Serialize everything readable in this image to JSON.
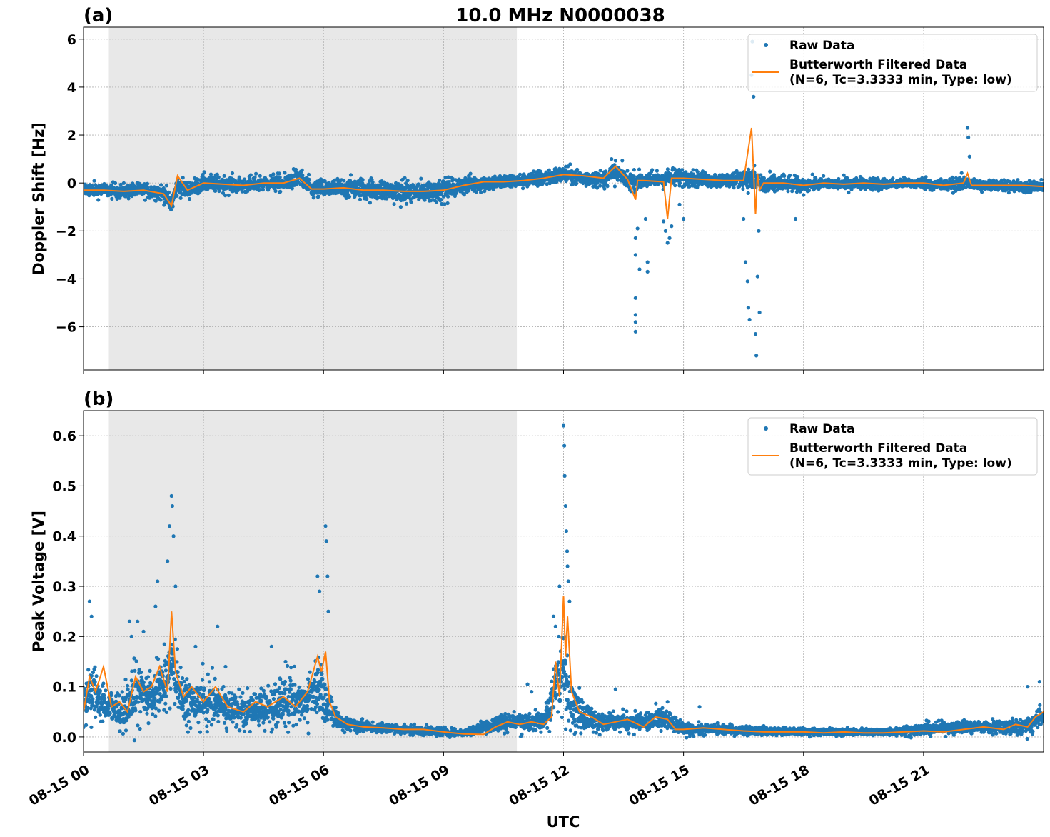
{
  "figure": {
    "title": "10.0 MHz N0000038",
    "xlabel": "UTC"
  },
  "chart_data": [
    {
      "type": "scatter",
      "panel_label": "(a)",
      "ylabel": "Doppler Shift [Hz]",
      "ylim": [
        -7.8,
        6.5
      ],
      "yticks": [
        6,
        4,
        2,
        0,
        -2,
        -4,
        -6
      ],
      "ytick_labels": [
        "6",
        "4",
        "2",
        "0",
        "−2",
        "−4",
        "−6"
      ],
      "xlim_hours": [
        0,
        24
      ],
      "grid": true,
      "shaded_interval_hours": [
        0.633,
        10.833
      ],
      "shade_color": "#e8e8e8",
      "legend_position": "top-right",
      "series": [
        {
          "name": "Raw Data",
          "kind": "points",
          "color": "#1f77b4",
          "band": {
            "x": [
              0,
              0.5,
              1.0,
              1.5,
              2.0,
              2.2,
              2.35,
              2.6,
              3.0,
              3.5,
              4.0,
              4.5,
              5.0,
              5.4,
              5.7,
              6.0,
              6.5,
              7.0,
              7.5,
              8.0,
              8.5,
              9.0,
              9.5,
              10.0,
              10.5,
              11.0,
              11.5,
              12.0,
              12.5,
              13.0,
              13.3,
              13.6,
              14.0,
              14.5,
              15.0,
              15.5,
              16.0,
              16.5,
              16.8,
              17.0,
              17.5,
              18.0,
              18.5,
              19.0,
              19.5,
              20.0,
              20.5,
              21.0,
              21.5,
              22.0,
              22.5,
              23.0,
              23.5,
              24.0
            ],
            "center": [
              -0.25,
              -0.3,
              -0.35,
              -0.3,
              -0.4,
              -0.9,
              -0.1,
              -0.3,
              0.0,
              -0.05,
              -0.1,
              0.0,
              0.0,
              0.25,
              -0.3,
              -0.25,
              -0.2,
              -0.25,
              -0.3,
              -0.4,
              -0.35,
              -0.3,
              -0.1,
              0.0,
              0.05,
              0.1,
              0.2,
              0.35,
              0.2,
              0.15,
              0.5,
              0.1,
              0.1,
              0.2,
              0.25,
              0.15,
              0.1,
              0.2,
              0.1,
              -0.1,
              0.0,
              -0.1,
              0.0,
              -0.05,
              0.0,
              -0.05,
              0.0,
              0.0,
              -0.1,
              0.0,
              -0.1,
              -0.1,
              -0.15,
              -0.15
            ],
            "spread": [
              0.3,
              0.3,
              0.3,
              0.3,
              0.35,
              0.4,
              0.4,
              0.35,
              0.35,
              0.35,
              0.35,
              0.35,
              0.35,
              0.4,
              0.4,
              0.4,
              0.4,
              0.45,
              0.45,
              0.5,
              0.45,
              0.45,
              0.4,
              0.35,
              0.3,
              0.3,
              0.35,
              0.35,
              0.35,
              0.35,
              0.45,
              0.4,
              0.35,
              0.4,
              0.35,
              0.3,
              0.3,
              0.35,
              0.6,
              0.45,
              0.35,
              0.3,
              0.25,
              0.25,
              0.25,
              0.25,
              0.2,
              0.25,
              0.25,
              0.3,
              0.25,
              0.25,
              0.25,
              0.25
            ]
          },
          "outliers": [
            [
              13.8,
              -2.3
            ],
            [
              13.8,
              -3.0
            ],
            [
              13.8,
              -4.8
            ],
            [
              13.8,
              -5.5
            ],
            [
              13.8,
              -5.8
            ],
            [
              13.8,
              -6.2
            ],
            [
              13.85,
              -1.9
            ],
            [
              13.9,
              -3.6
            ],
            [
              14.05,
              -1.5
            ],
            [
              14.1,
              -3.3
            ],
            [
              14.1,
              -3.7
            ],
            [
              14.5,
              -1.6
            ],
            [
              14.55,
              -2.0
            ],
            [
              14.6,
              -2.5
            ],
            [
              14.65,
              -2.3
            ],
            [
              14.7,
              -1.8
            ],
            [
              14.9,
              -0.9
            ],
            [
              15.0,
              -1.5
            ],
            [
              16.5,
              -1.5
            ],
            [
              16.55,
              -3.3
            ],
            [
              16.6,
              -4.1
            ],
            [
              16.62,
              -5.2
            ],
            [
              16.65,
              -5.7
            ],
            [
              16.7,
              4.5
            ],
            [
              16.72,
              5.9
            ],
            [
              16.75,
              3.6
            ],
            [
              16.8,
              -6.3
            ],
            [
              16.82,
              -7.2
            ],
            [
              16.85,
              -3.9
            ],
            [
              16.88,
              -2.0
            ],
            [
              16.9,
              -5.4
            ],
            [
              17.8,
              -1.5
            ],
            [
              13.2,
              1.0
            ],
            [
              22.1,
              2.3
            ],
            [
              22.12,
              1.9
            ],
            [
              22.15,
              1.1
            ]
          ]
        },
        {
          "name": "Butterworth Filtered Data\n(N=6, Tc=3.3333 min, Type: low)",
          "kind": "line",
          "color": "#ff7f0e",
          "x": [
            0,
            0.5,
            1.0,
            1.5,
            2.0,
            2.2,
            2.35,
            2.6,
            3.0,
            3.5,
            4.0,
            4.5,
            5.0,
            5.4,
            5.7,
            6.0,
            6.5,
            7.0,
            7.5,
            8.0,
            8.5,
            9.0,
            9.5,
            10.0,
            10.5,
            11.0,
            11.5,
            12.0,
            12.5,
            13.0,
            13.3,
            13.6,
            13.8,
            13.85,
            14.0,
            14.5,
            14.6,
            14.7,
            15.0,
            15.5,
            16.0,
            16.5,
            16.7,
            16.8,
            16.85,
            16.9,
            17.0,
            17.5,
            18.0,
            18.5,
            19.0,
            19.5,
            20.0,
            20.5,
            21.0,
            21.5,
            22.0,
            22.1,
            22.2,
            22.5,
            23.0,
            23.5,
            24.0
          ],
          "y": [
            -0.3,
            -0.3,
            -0.35,
            -0.3,
            -0.45,
            -0.95,
            0.3,
            -0.3,
            0.0,
            -0.05,
            -0.1,
            0.0,
            0.0,
            0.2,
            -0.25,
            -0.25,
            -0.2,
            -0.3,
            -0.3,
            -0.35,
            -0.35,
            -0.3,
            -0.1,
            0.05,
            0.05,
            0.1,
            0.2,
            0.35,
            0.3,
            0.2,
            0.7,
            0.15,
            -0.7,
            0.1,
            0.1,
            0.05,
            -1.5,
            0.2,
            0.2,
            0.15,
            0.1,
            0.1,
            2.3,
            -1.3,
            0.4,
            -0.3,
            0.0,
            0.0,
            -0.1,
            0.0,
            -0.05,
            0.0,
            -0.05,
            0.0,
            0.0,
            -0.1,
            0.0,
            0.4,
            -0.1,
            -0.1,
            -0.1,
            -0.1,
            -0.15
          ]
        }
      ]
    },
    {
      "type": "scatter",
      "panel_label": "(b)",
      "ylabel": "Peak Voltage [V]",
      "ylim": [
        -0.03,
        0.65
      ],
      "yticks": [
        0.6,
        0.5,
        0.4,
        0.3,
        0.2,
        0.1,
        0.0
      ],
      "ytick_labels": [
        "0.6",
        "0.5",
        "0.4",
        "0.3",
        "0.2",
        "0.1",
        "0.0"
      ],
      "xlim_hours": [
        0,
        24
      ],
      "xticks_hours": [
        0,
        3,
        6,
        9,
        12,
        15,
        18,
        21
      ],
      "xtick_labels": [
        "08-15 00",
        "08-15 03",
        "08-15 06",
        "08-15 09",
        "08-15 12",
        "08-15 15",
        "08-15 18",
        "08-15 21"
      ],
      "grid": true,
      "shaded_interval_hours": [
        0.633,
        10.833
      ],
      "shade_color": "#e8e8e8",
      "legend_position": "top-right",
      "series": [
        {
          "name": "Raw Data",
          "kind": "points",
          "color": "#1f77b4",
          "band": {
            "x": [
              0,
              0.3,
              0.6,
              1.0,
              1.3,
              1.6,
              2.0,
              2.2,
              2.5,
              3.0,
              3.5,
              4.0,
              4.5,
              5.0,
              5.5,
              5.9,
              6.1,
              6.4,
              7.0,
              8.0,
              9.0,
              9.5,
              10.0,
              10.5,
              11.0,
              11.5,
              11.8,
              12.0,
              12.2,
              12.5,
              13.0,
              13.5,
              14.0,
              14.5,
              15.0,
              16.0,
              17.0,
              18.0,
              19.0,
              20.0,
              21.0,
              22.0,
              23.0,
              23.5,
              24.0
            ],
            "center": [
              0.07,
              0.09,
              0.06,
              0.05,
              0.09,
              0.08,
              0.1,
              0.14,
              0.07,
              0.07,
              0.06,
              0.05,
              0.06,
              0.07,
              0.07,
              0.11,
              0.06,
              0.03,
              0.02,
              0.015,
              0.01,
              0.008,
              0.02,
              0.03,
              0.03,
              0.03,
              0.1,
              0.13,
              0.07,
              0.04,
              0.03,
              0.03,
              0.03,
              0.035,
              0.015,
              0.015,
              0.012,
              0.01,
              0.01,
              0.01,
              0.015,
              0.02,
              0.02,
              0.02,
              0.04
            ],
            "spread": [
              0.05,
              0.06,
              0.04,
              0.04,
              0.06,
              0.05,
              0.06,
              0.07,
              0.05,
              0.05,
              0.04,
              0.04,
              0.04,
              0.05,
              0.05,
              0.06,
              0.04,
              0.02,
              0.012,
              0.01,
              0.008,
              0.006,
              0.015,
              0.02,
              0.02,
              0.02,
              0.07,
              0.09,
              0.05,
              0.03,
              0.02,
              0.02,
              0.02,
              0.025,
              0.012,
              0.01,
              0.008,
              0.007,
              0.007,
              0.007,
              0.012,
              0.012,
              0.015,
              0.02,
              0.025
            ]
          },
          "outliers": [
            [
              0.15,
              0.27
            ],
            [
              0.2,
              0.24
            ],
            [
              1.15,
              0.23
            ],
            [
              1.2,
              0.2
            ],
            [
              1.35,
              0.23
            ],
            [
              1.5,
              0.21
            ],
            [
              1.8,
              0.26
            ],
            [
              1.85,
              0.31
            ],
            [
              2.1,
              0.35
            ],
            [
              2.15,
              0.42
            ],
            [
              2.2,
              0.48
            ],
            [
              2.22,
              0.46
            ],
            [
              2.25,
              0.4
            ],
            [
              2.3,
              0.3
            ],
            [
              2.8,
              0.18
            ],
            [
              3.35,
              0.22
            ],
            [
              3.55,
              0.14
            ],
            [
              4.7,
              0.18
            ],
            [
              5.05,
              0.15
            ],
            [
              5.85,
              0.32
            ],
            [
              5.9,
              0.29
            ],
            [
              6.05,
              0.42
            ],
            [
              6.07,
              0.39
            ],
            [
              6.1,
              0.32
            ],
            [
              6.12,
              0.25
            ],
            [
              11.1,
              0.105
            ],
            [
              11.2,
              0.09
            ],
            [
              11.75,
              0.24
            ],
            [
              11.8,
              0.22
            ],
            [
              11.9,
              0.3
            ],
            [
              12.0,
              0.62
            ],
            [
              12.02,
              0.58
            ],
            [
              12.03,
              0.52
            ],
            [
              12.05,
              0.46
            ],
            [
              12.07,
              0.41
            ],
            [
              12.09,
              0.37
            ],
            [
              12.1,
              0.34
            ],
            [
              12.12,
              0.31
            ],
            [
              12.15,
              0.27
            ],
            [
              13.3,
              0.095
            ],
            [
              14.6,
              0.07
            ],
            [
              15.4,
              0.06
            ],
            [
              23.6,
              0.1
            ],
            [
              23.9,
              0.11
            ]
          ]
        },
        {
          "name": "Butterworth Filtered Data\n(N=6, Tc=3.3333 min, Type: low)",
          "kind": "line",
          "color": "#ff7f0e",
          "x": [
            0,
            0.15,
            0.3,
            0.5,
            0.7,
            0.9,
            1.1,
            1.3,
            1.5,
            1.7,
            1.9,
            2.1,
            2.2,
            2.3,
            2.5,
            2.7,
            3.0,
            3.3,
            3.6,
            4.0,
            4.3,
            4.6,
            5.0,
            5.3,
            5.6,
            5.85,
            5.95,
            6.05,
            6.15,
            6.3,
            6.6,
            7.0,
            7.5,
            8.0,
            8.5,
            9.0,
            9.5,
            10.0,
            10.3,
            10.6,
            10.9,
            11.2,
            11.5,
            11.7,
            11.8,
            11.9,
            12.0,
            12.05,
            12.1,
            12.2,
            12.4,
            12.7,
            13.0,
            13.3,
            13.6,
            14.0,
            14.3,
            14.6,
            14.8,
            15.0,
            15.5,
            16.0,
            16.5,
            17.0,
            17.5,
            18.0,
            18.5,
            19.0,
            19.5,
            20.0,
            20.5,
            21.0,
            21.5,
            22.0,
            22.5,
            23.0,
            23.3,
            23.6,
            23.8,
            24.0
          ],
          "y": [
            0.05,
            0.12,
            0.09,
            0.14,
            0.06,
            0.07,
            0.05,
            0.12,
            0.09,
            0.1,
            0.14,
            0.09,
            0.25,
            0.13,
            0.08,
            0.1,
            0.07,
            0.1,
            0.06,
            0.05,
            0.07,
            0.06,
            0.08,
            0.06,
            0.09,
            0.16,
            0.13,
            0.17,
            0.07,
            0.04,
            0.025,
            0.02,
            0.018,
            0.015,
            0.015,
            0.01,
            0.006,
            0.005,
            0.02,
            0.03,
            0.025,
            0.03,
            0.025,
            0.04,
            0.15,
            0.08,
            0.28,
            0.16,
            0.24,
            0.09,
            0.05,
            0.04,
            0.025,
            0.03,
            0.035,
            0.02,
            0.04,
            0.035,
            0.015,
            0.015,
            0.018,
            0.015,
            0.012,
            0.01,
            0.01,
            0.01,
            0.008,
            0.01,
            0.008,
            0.008,
            0.01,
            0.012,
            0.01,
            0.015,
            0.02,
            0.015,
            0.025,
            0.02,
            0.04,
            0.05
          ]
        }
      ]
    }
  ]
}
